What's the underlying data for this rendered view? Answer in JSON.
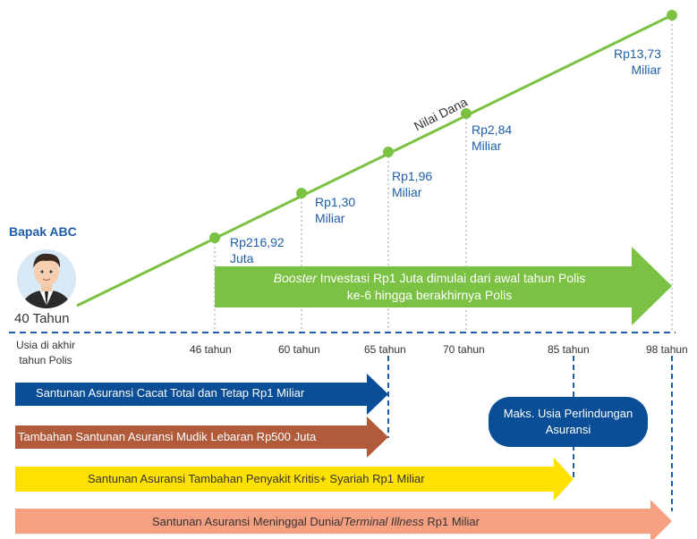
{
  "person": {
    "name": "Bapak ABC",
    "age_label": "40 Tahun"
  },
  "caption": "Usia di akhir\ntahun Polis",
  "line_label": "Nilai Dana",
  "values": [
    {
      "age": "46 tahun",
      "amount": "Rp216,92\nJuta"
    },
    {
      "age": "60 tahun",
      "amount": "Rp1,30\nMiliar"
    },
    {
      "age": "65 tahun",
      "amount": "Rp1,96\nMiliar"
    },
    {
      "age": "70 tahun",
      "amount": "Rp2,84\nMiliar"
    },
    {
      "age": "98 tahun",
      "amount": "Rp13,73\nMiliar"
    }
  ],
  "extra_age": "85 tahun",
  "booster": {
    "italic": "Booster",
    "line1": " Investasi Rp1 Juta dimulai dari awal tahun Polis",
    "line2": "ke-6 hingga berakhirnya Polis"
  },
  "max_age_pill": "Maks. Usia Perlindungan\nAsuransi",
  "bars": [
    {
      "text": "Santunan Asuransi Cacat Total dan Tetap Rp1 Miliar",
      "color": "#0a4e97",
      "text_color": "#ffffff"
    },
    {
      "text": "Tambahan Santunan Asuransi Mudik Lebaran Rp500 Juta",
      "color": "#b25b3a",
      "text_color": "#ffffff"
    },
    {
      "text": "Santunan Asuransi Tambahan Penyakit Kritis+ Syariah Rp1 Miliar",
      "color": "#ffe100",
      "text_color": "#333333"
    },
    {
      "pre": "Santunan Asuransi Meninggal Dunia/",
      "italic": "Terminal Illness",
      "post": " Rp1 Miliar",
      "color": "#f6a081",
      "text_color": "#333333"
    }
  ],
  "colors": {
    "green": "#7bc143",
    "blue_dark": "#0a4e97",
    "dashed": "#1f5ea8"
  }
}
